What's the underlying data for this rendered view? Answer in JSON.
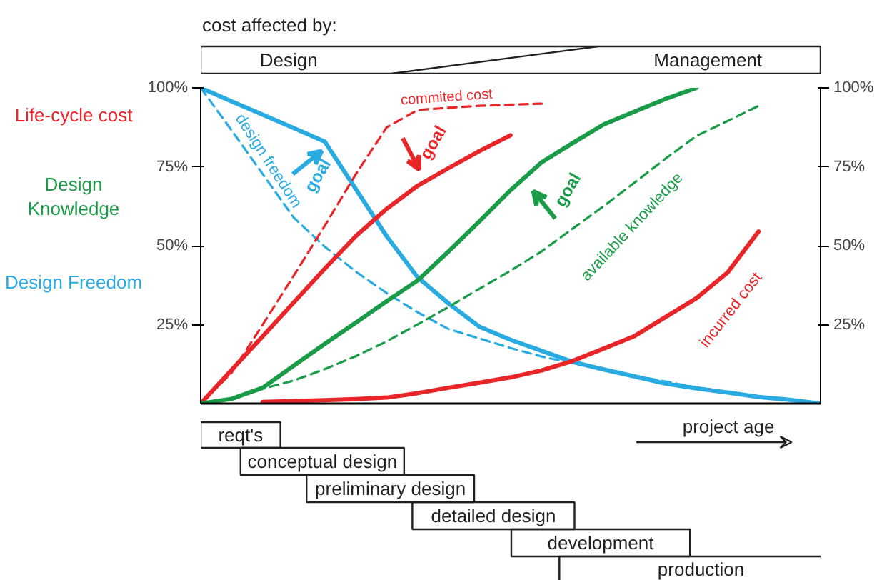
{
  "chart_data": {
    "type": "line",
    "annotations": [
      "cost affected by:",
      "Design",
      "Management",
      "goal",
      "goal",
      "goal",
      "project age",
      "reqt's",
      "conceptual design",
      "preliminary design",
      "detailed design",
      "development",
      "production",
      "Life-cycle cost",
      "Design Knowledge",
      "Design Freedom"
    ],
    "categories": [
      null,
      null,
      null,
      null,
      null,
      null,
      null,
      null,
      null,
      null,
      null,
      null,
      null,
      null,
      null,
      null,
      null,
      null,
      null,
      null,
      null
    ],
    "series": [
      {
        "color": "#29abe2",
        "line_style": "solid",
        "values": [
          100,
          95.7,
          91.5,
          87.3,
          83,
          68,
          53,
          40,
          31.7,
          24.3,
          20.2,
          16.7,
          13.2,
          10.8,
          8.6,
          6.3,
          4.8,
          3.5,
          2.1,
          1.2,
          0
        ]
      },
      {
        "name": "design freedom",
        "color": "#29abe2",
        "line_style": "dashed",
        "values": [
          100,
          86.5,
          72.7,
          58.9,
          49.7,
          41.8,
          35,
          28.9,
          23.6,
          20.6,
          17.6,
          14.9,
          12.8,
          10.8,
          8.8,
          7,
          5.1,
          3.6,
          2.1,
          1,
          null
        ]
      },
      {
        "color": "#e8262a",
        "line_style": "solid",
        "values": [
          0,
          10.7,
          21.3,
          32,
          42.7,
          53,
          61.7,
          69,
          74.6,
          80,
          85,
          null,
          null,
          null,
          null,
          null,
          null,
          null,
          null,
          null,
          null
        ]
      },
      {
        "name": "commited cost",
        "color": "#e8262a",
        "line_style": "dashed",
        "values": [
          0,
          9.8,
          25,
          40.5,
          56.3,
          72.6,
          87.5,
          93,
          93.7,
          94.3,
          94.7,
          95,
          null,
          null,
          null,
          null,
          null,
          null,
          null,
          null,
          null
        ]
      },
      {
        "color": "#1a9b48",
        "line_style": "solid",
        "values": [
          0,
          1.5,
          5,
          12,
          18.9,
          25.6,
          32.4,
          39,
          48.2,
          57.8,
          67.6,
          76.4,
          82.5,
          88.4,
          92.5,
          96.5,
          100,
          null,
          null,
          null,
          null
        ]
      },
      {
        "name": "available knowledge",
        "color": "#1a9b48",
        "line_style": "dashed",
        "values": [
          0,
          1.5,
          4.7,
          7.3,
          10.9,
          15,
          19.7,
          25.1,
          30.6,
          36.4,
          42.1,
          48.2,
          55.4,
          62.5,
          70,
          77.6,
          84.8,
          89.5,
          94.3,
          null,
          null
        ]
      },
      {
        "name": "incurred cost",
        "color": "#e8262a",
        "line_style": "solid",
        "values": [
          null,
          null,
          0.5,
          0.8,
          1.1,
          1.4,
          1.9,
          3.3,
          5,
          6.6,
          8.3,
          10.5,
          13.5,
          17.4,
          21.4,
          27.4,
          33.4,
          41.5,
          54.5,
          null,
          null
        ]
      }
    ],
    "ylim": [
      0,
      100
    ],
    "yticks": [
      {
        "value": 25,
        "label": "25%"
      },
      {
        "value": 50,
        "label": "50%"
      },
      {
        "value": 75,
        "label": "75%"
      },
      {
        "value": 100,
        "label": "100%"
      }
    ],
    "y2lim": [
      0,
      100
    ],
    "y2ticks": [
      {
        "value": 25,
        "label": "25%"
      },
      {
        "value": 50,
        "label": "50%"
      },
      {
        "value": 75,
        "label": "75%"
      },
      {
        "value": 100,
        "label": "100%"
      }
    ],
    "grid": false
  }
}
